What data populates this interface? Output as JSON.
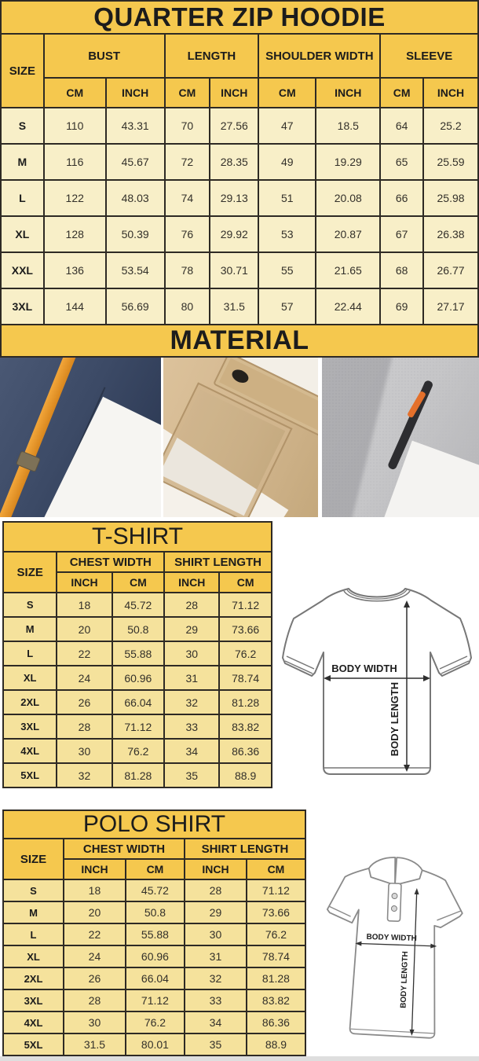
{
  "colors": {
    "header_yellow": "#f5c84e",
    "hoodie_row_cream": "#f8efc8",
    "shirt_row_gold": "#f5e29c",
    "border_dark": "#2e2a24",
    "accent_orange": "#e8952f",
    "navy_fabric": "#3c4a66",
    "khaki_fabric": "#d2b68e",
    "heather_gray_fabric": "#c6c6c8"
  },
  "hoodie": {
    "title": "QUARTER ZIP HOODIE",
    "size_label": "SIZE",
    "groups": [
      "BUST",
      "LENGTH",
      "SHOULDER WIDTH",
      "SLEEVE"
    ],
    "units": {
      "cm": "CM",
      "inch": "INCH"
    },
    "rows": [
      {
        "size": "S",
        "cells": [
          "110",
          "43.31",
          "70",
          "27.56",
          "47",
          "18.5",
          "64",
          "25.2"
        ]
      },
      {
        "size": "M",
        "cells": [
          "116",
          "45.67",
          "72",
          "28.35",
          "49",
          "19.29",
          "65",
          "25.59"
        ]
      },
      {
        "size": "L",
        "cells": [
          "122",
          "48.03",
          "74",
          "29.13",
          "51",
          "20.08",
          "66",
          "25.98"
        ]
      },
      {
        "size": "XL",
        "cells": [
          "128",
          "50.39",
          "76",
          "29.92",
          "53",
          "20.87",
          "67",
          "26.38"
        ]
      },
      {
        "size": "XXL",
        "cells": [
          "136",
          "53.54",
          "78",
          "30.71",
          "55",
          "21.65",
          "68",
          "26.77"
        ]
      },
      {
        "size": "3XL",
        "cells": [
          "144",
          "56.69",
          "80",
          "31.5",
          "57",
          "22.44",
          "69",
          "27.17"
        ]
      }
    ]
  },
  "material": {
    "title": "MATERIAL",
    "photos": [
      {
        "name": "navy fleece with orange drawstring"
      },
      {
        "name": "khaki fabric with snap pocket"
      },
      {
        "name": "gray fleece with zip pocket"
      }
    ]
  },
  "tshirt": {
    "title": "T-SHIRT",
    "size_label": "SIZE",
    "groups": [
      "CHEST WIDTH",
      "SHIRT LENGTH"
    ],
    "units": {
      "inch": "INCH",
      "cm": "CM"
    },
    "rows": [
      {
        "size": "S",
        "cells": [
          "18",
          "45.72",
          "28",
          "71.12"
        ]
      },
      {
        "size": "M",
        "cells": [
          "20",
          "50.8",
          "29",
          "73.66"
        ]
      },
      {
        "size": "L",
        "cells": [
          "22",
          "55.88",
          "30",
          "76.2"
        ]
      },
      {
        "size": "XL",
        "cells": [
          "24",
          "60.96",
          "31",
          "78.74"
        ]
      },
      {
        "size": "2XL",
        "cells": [
          "26",
          "66.04",
          "32",
          "81.28"
        ]
      },
      {
        "size": "3XL",
        "cells": [
          "28",
          "71.12",
          "33",
          "83.82"
        ]
      },
      {
        "size": "4XL",
        "cells": [
          "30",
          "76.2",
          "34",
          "86.36"
        ]
      },
      {
        "size": "5XL",
        "cells": [
          "32",
          "81.28",
          "35",
          "88.9"
        ]
      }
    ],
    "diagram": {
      "width_label": "BODY WIDTH",
      "length_label": "BODY LENGTH"
    }
  },
  "polo": {
    "title": "POLO SHIRT",
    "size_label": "SIZE",
    "groups": [
      "CHEST WIDTH",
      "SHIRT LENGTH"
    ],
    "units": {
      "inch": "INCH",
      "cm": "CM"
    },
    "rows": [
      {
        "size": "S",
        "cells": [
          "18",
          "45.72",
          "28",
          "71.12"
        ]
      },
      {
        "size": "M",
        "cells": [
          "20",
          "50.8",
          "29",
          "73.66"
        ]
      },
      {
        "size": "L",
        "cells": [
          "22",
          "55.88",
          "30",
          "76.2"
        ]
      },
      {
        "size": "XL",
        "cells": [
          "24",
          "60.96",
          "31",
          "78.74"
        ]
      },
      {
        "size": "2XL",
        "cells": [
          "26",
          "66.04",
          "32",
          "81.28"
        ]
      },
      {
        "size": "3XL",
        "cells": [
          "28",
          "71.12",
          "33",
          "83.82"
        ]
      },
      {
        "size": "4XL",
        "cells": [
          "30",
          "76.2",
          "34",
          "86.36"
        ]
      },
      {
        "size": "5XL",
        "cells": [
          "31.5",
          "80.01",
          "35",
          "88.9"
        ]
      }
    ],
    "diagram": {
      "width_label": "BODY WIDTH",
      "length_label": "BODY LENGTH"
    }
  }
}
